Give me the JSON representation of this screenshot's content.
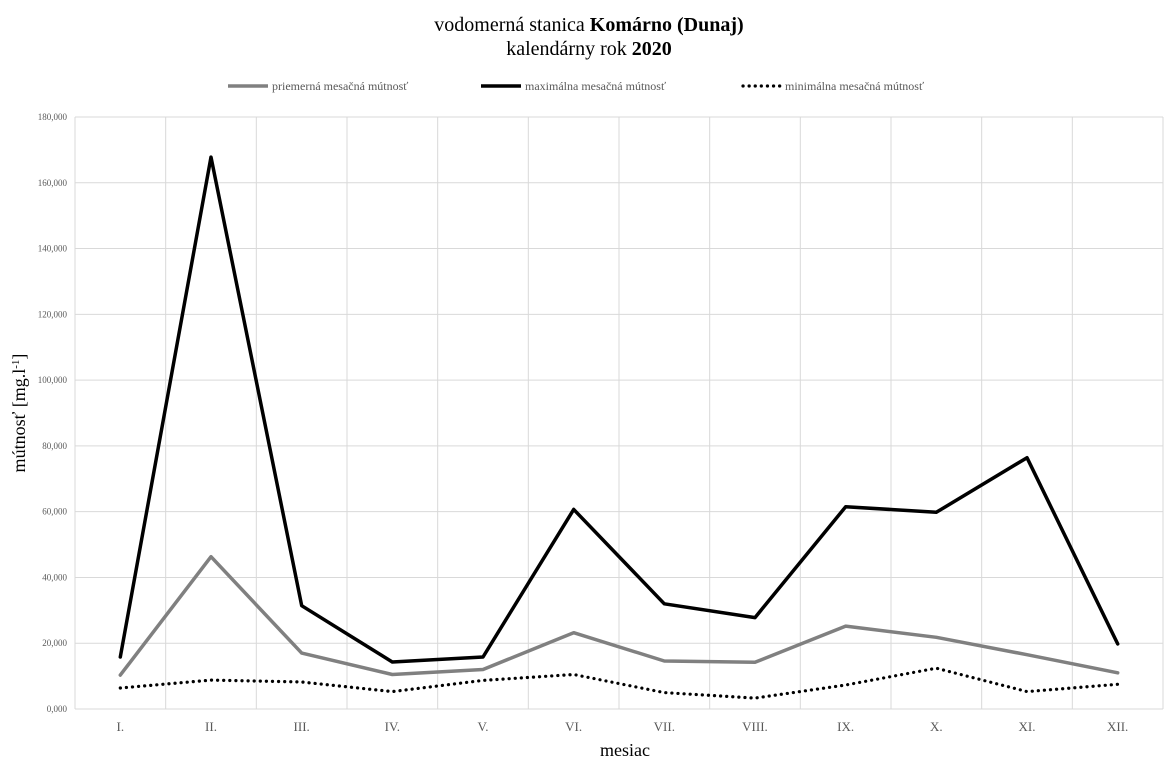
{
  "chart_data": {
    "type": "line",
    "title": {
      "line1_prefix": "vodomerná stanica",
      "line1_bold": "Komárno (Dunaj)",
      "line2_prefix": "kalendárny rok",
      "line2_bold": "2020"
    },
    "xlabel": "mesiac",
    "ylabel": "mútnosť [mg.l",
    "ylabel_sup": "-1",
    "ylabel_suffix": "]",
    "categories": [
      "I.",
      "II.",
      "III.",
      "IV.",
      "V.",
      "VI.",
      "VII.",
      "VIII.",
      "IX.",
      "X.",
      "XI.",
      "XII."
    ],
    "ylim": [
      0,
      180000
    ],
    "yticks": [
      0,
      20000,
      40000,
      60000,
      80000,
      100000,
      120000,
      140000,
      160000,
      180000
    ],
    "ytick_labels": [
      "0,000",
      "20,000",
      "40,000",
      "60,000",
      "80,000",
      "100,000",
      "120,000",
      "140,000",
      "160,000",
      "180,000"
    ],
    "grid": true,
    "legend_position": "top-center",
    "series": [
      {
        "name": "priemerná mesačná mútnosť",
        "color": "#808080",
        "style": "solid",
        "values": [
          10300,
          46300,
          17000,
          10500,
          12000,
          23200,
          14600,
          14200,
          25200,
          21800,
          16500,
          11000
        ]
      },
      {
        "name": "maximálna mesačná mútnosť",
        "color": "#000000",
        "style": "solid",
        "values": [
          15800,
          167800,
          31400,
          14300,
          15800,
          60700,
          32000,
          27800,
          61500,
          59800,
          76400,
          19800
        ]
      },
      {
        "name": "minimálna mesačná mútnosť",
        "color": "#000000",
        "style": "dotted",
        "values": [
          6400,
          8800,
          8200,
          5300,
          8700,
          10500,
          5000,
          3300,
          7300,
          12400,
          5300,
          7500
        ]
      }
    ]
  }
}
